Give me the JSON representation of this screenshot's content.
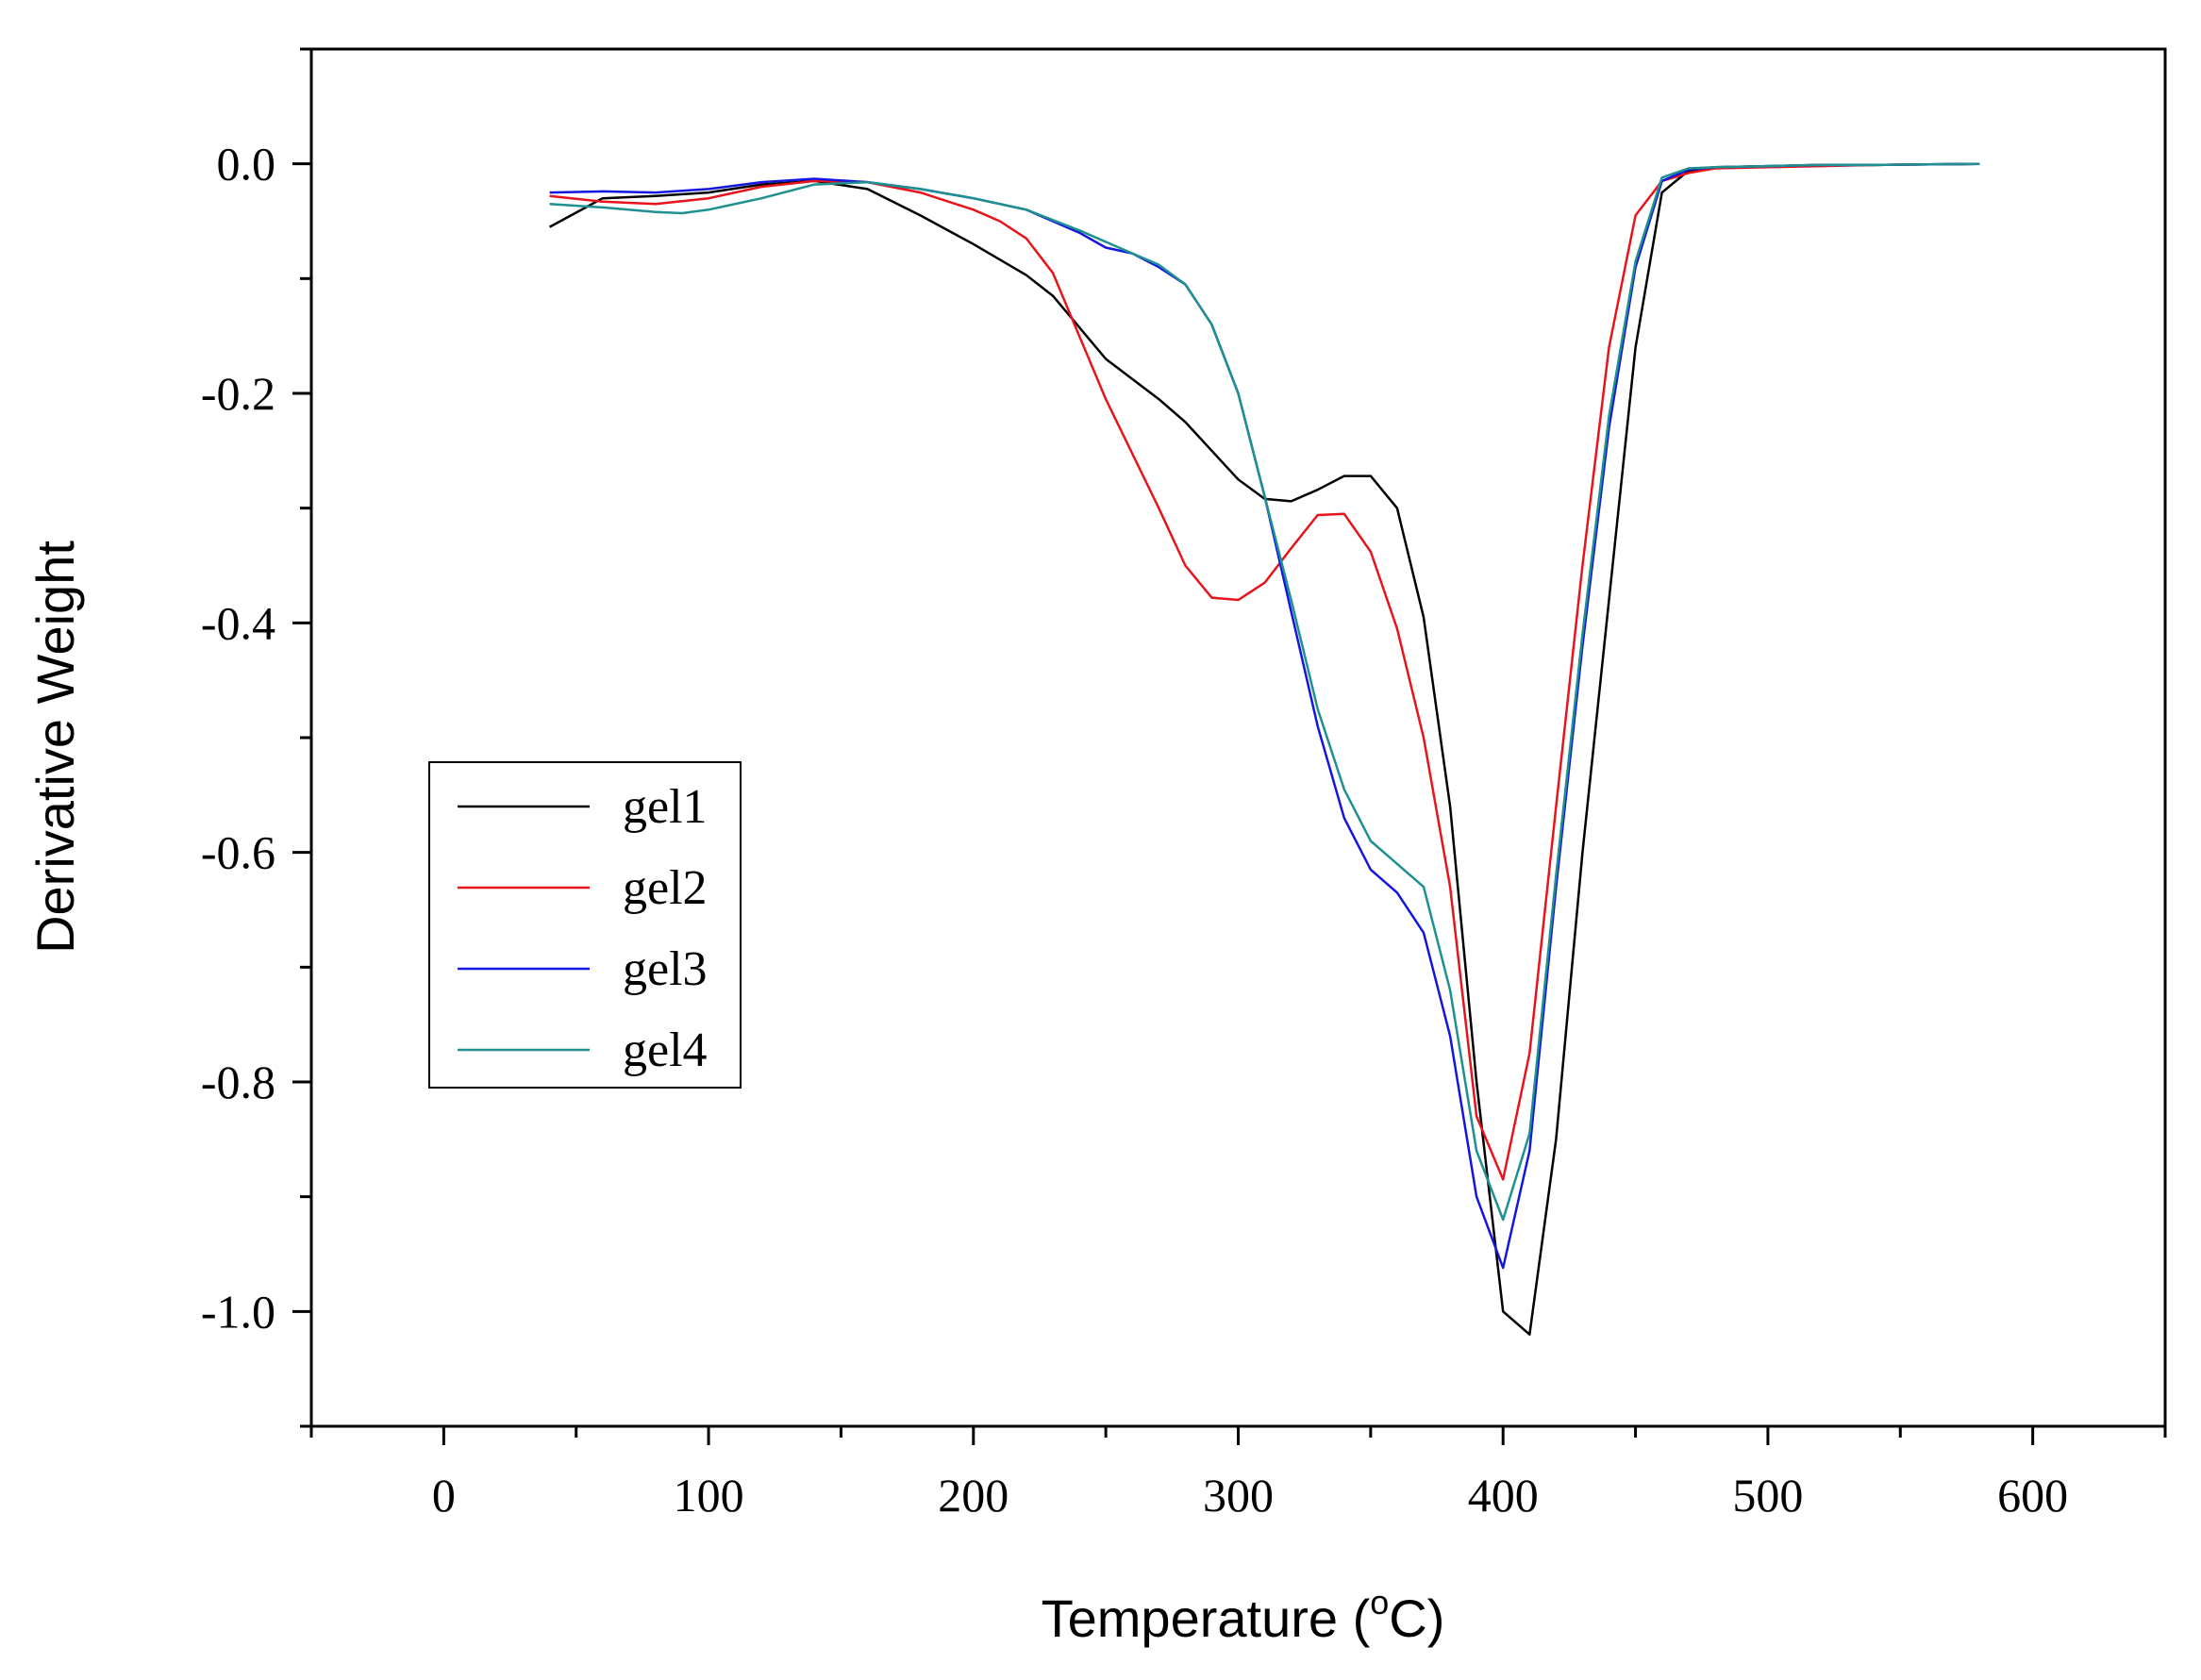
{
  "chart_data": {
    "type": "line",
    "title": "",
    "xlabel_main": "Temperature (",
    "xlabel_sup": "o",
    "xlabel_end": "C)",
    "ylabel": "Derivative Weight",
    "xlim": [
      -50,
      650
    ],
    "ylim": [
      -1.1,
      0.1
    ],
    "xticks": [
      0,
      100,
      200,
      300,
      400,
      500,
      600
    ],
    "xtick_labels": [
      "0",
      "100",
      "200",
      "300",
      "400",
      "500",
      "600"
    ],
    "yticks": [
      0.0,
      -0.2,
      -0.4,
      -0.6,
      -0.8,
      -1.0
    ],
    "ytick_labels": [
      "0.0",
      "-0.2",
      "-0.4",
      "-0.6",
      "-0.8",
      "-1.0"
    ],
    "grid": false,
    "legend_position": "middle-left",
    "series": [
      {
        "name": "gel1",
        "color": "#000000",
        "x": [
          40,
          60,
          80,
          100,
          120,
          140,
          160,
          180,
          200,
          220,
          230,
          250,
          270,
          280,
          300,
          310,
          320,
          330,
          340,
          350,
          360,
          370,
          380,
          390,
          400,
          410,
          420,
          430,
          440,
          450,
          460,
          470,
          480,
          500,
          520,
          540,
          580
        ],
        "y": [
          -0.055,
          -0.03,
          -0.028,
          -0.025,
          -0.018,
          -0.015,
          -0.022,
          -0.045,
          -0.07,
          -0.097,
          -0.115,
          -0.17,
          -0.205,
          -0.225,
          -0.275,
          -0.292,
          -0.294,
          -0.284,
          -0.272,
          -0.272,
          -0.3,
          -0.395,
          -0.56,
          -0.8,
          -1.0,
          -1.02,
          -0.85,
          -0.6,
          -0.38,
          -0.16,
          -0.025,
          -0.006,
          -0.003,
          -0.002,
          -0.001,
          -0.001,
          0.0
        ]
      },
      {
        "name": "gel2",
        "color": "#e8141c",
        "x": [
          40,
          60,
          80,
          100,
          120,
          140,
          160,
          180,
          200,
          210,
          220,
          230,
          250,
          270,
          280,
          290,
          300,
          310,
          320,
          330,
          340,
          350,
          360,
          370,
          380,
          390,
          400,
          410,
          420,
          430,
          440,
          450,
          460,
          470,
          480,
          500,
          520,
          540,
          580
        ],
        "y": [
          -0.028,
          -0.033,
          -0.035,
          -0.03,
          -0.02,
          -0.015,
          -0.016,
          -0.025,
          -0.04,
          -0.05,
          -0.065,
          -0.095,
          -0.205,
          -0.3,
          -0.35,
          -0.378,
          -0.38,
          -0.365,
          -0.335,
          -0.306,
          -0.305,
          -0.338,
          -0.405,
          -0.5,
          -0.63,
          -0.83,
          -0.885,
          -0.775,
          -0.56,
          -0.35,
          -0.16,
          -0.045,
          -0.015,
          -0.008,
          -0.004,
          -0.003,
          -0.002,
          -0.001,
          0.0
        ]
      },
      {
        "name": "gel3",
        "color": "#1515e0",
        "x": [
          40,
          60,
          80,
          100,
          120,
          140,
          160,
          180,
          200,
          220,
          240,
          250,
          260,
          270,
          280,
          290,
          300,
          310,
          320,
          330,
          340,
          350,
          360,
          370,
          380,
          390,
          400,
          410,
          420,
          430,
          440,
          450,
          460,
          470,
          480,
          500,
          520,
          540,
          580
        ],
        "y": [
          -0.025,
          -0.024,
          -0.025,
          -0.022,
          -0.016,
          -0.013,
          -0.016,
          -0.022,
          -0.03,
          -0.04,
          -0.06,
          -0.073,
          -0.078,
          -0.09,
          -0.105,
          -0.14,
          -0.2,
          -0.29,
          -0.39,
          -0.49,
          -0.57,
          -0.615,
          -0.635,
          -0.67,
          -0.76,
          -0.9,
          -0.962,
          -0.86,
          -0.63,
          -0.42,
          -0.23,
          -0.09,
          -0.015,
          -0.005,
          -0.003,
          -0.002,
          -0.001,
          -0.001,
          0.0
        ]
      },
      {
        "name": "gel4",
        "color": "#1f9090",
        "x": [
          40,
          60,
          80,
          90,
          100,
          120,
          140,
          160,
          180,
          200,
          220,
          240,
          250,
          260,
          270,
          280,
          290,
          300,
          310,
          320,
          330,
          340,
          350,
          360,
          370,
          380,
          390,
          400,
          410,
          420,
          430,
          440,
          450,
          460,
          470,
          480,
          500,
          520,
          540,
          580
        ],
        "y": [
          -0.035,
          -0.038,
          -0.042,
          -0.043,
          -0.04,
          -0.03,
          -0.018,
          -0.016,
          -0.022,
          -0.03,
          -0.04,
          -0.058,
          -0.068,
          -0.078,
          -0.088,
          -0.105,
          -0.14,
          -0.2,
          -0.29,
          -0.38,
          -0.475,
          -0.545,
          -0.59,
          -0.61,
          -0.63,
          -0.72,
          -0.86,
          -0.92,
          -0.845,
          -0.62,
          -0.41,
          -0.22,
          -0.085,
          -0.012,
          -0.004,
          -0.003,
          -0.002,
          -0.001,
          -0.001,
          0.0
        ]
      }
    ]
  }
}
